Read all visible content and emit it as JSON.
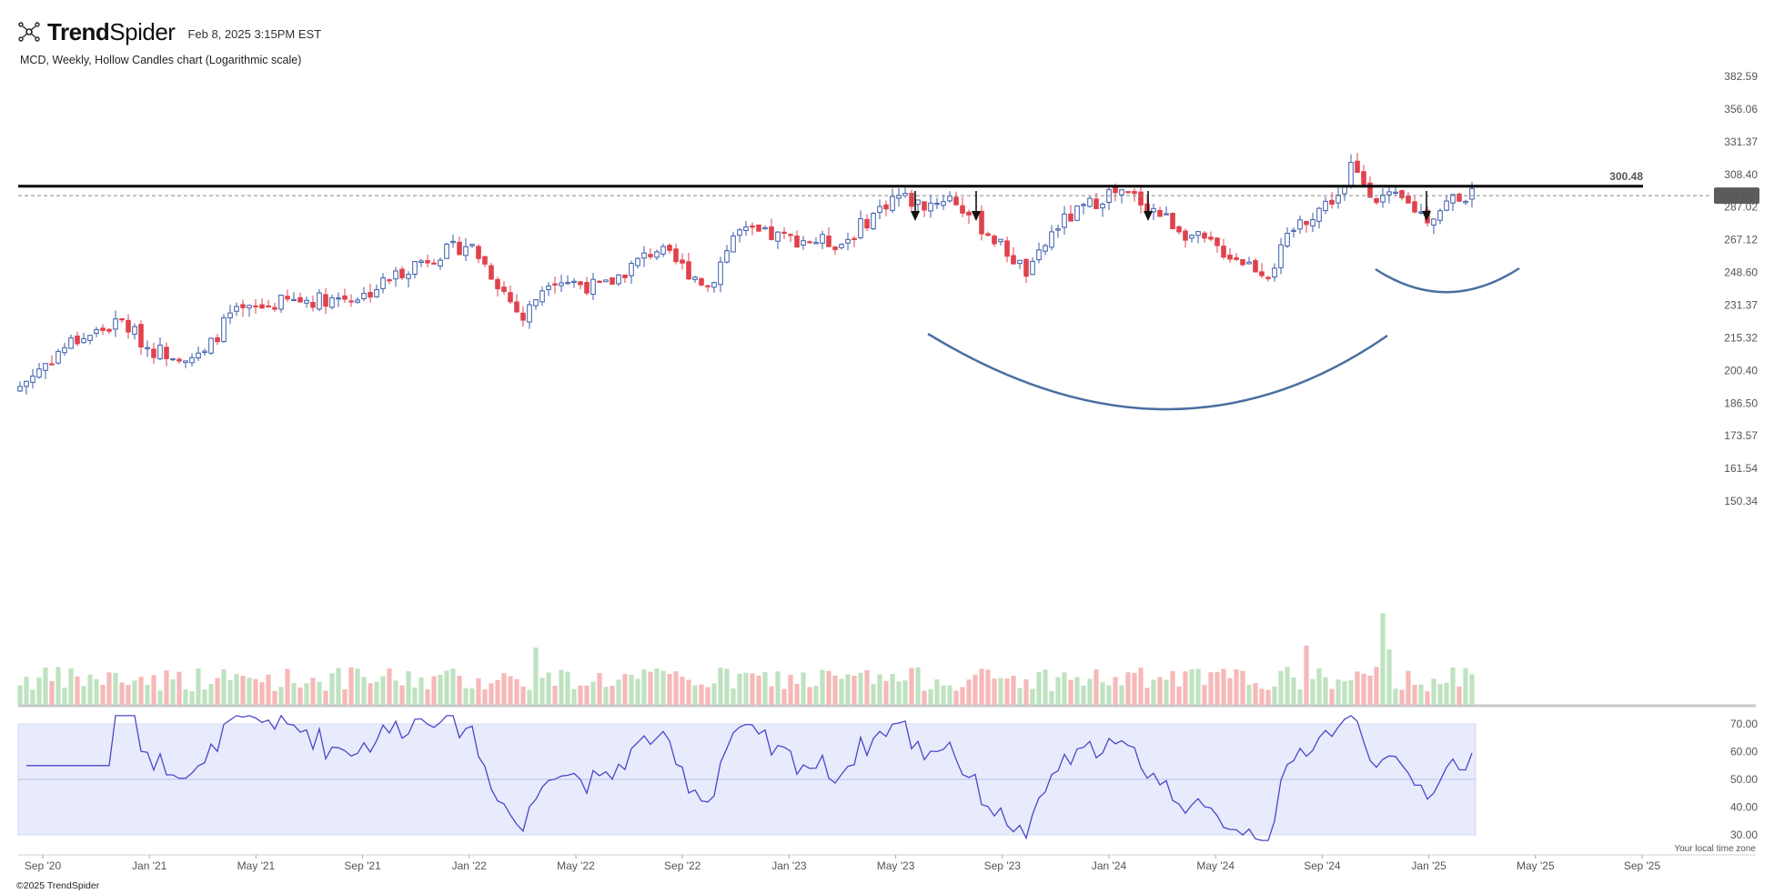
{
  "header": {
    "brand_bold": "Trend",
    "brand_light": "Spider",
    "timestamp": "Feb 8, 2025 3:15PM EST",
    "logo_icon": "trendspider-logo-icon"
  },
  "subtitle": "MCD, Weekly, Hollow Candles chart (Logarithmic scale)",
  "footer": {
    "copyright": "©2025 TrendSpider",
    "timezone": "Your local time zone"
  },
  "colors": {
    "up": "#3b5bab",
    "down": "#e0424c",
    "vol_up": "#bfe2c0",
    "vol_down": "#f6b8b8",
    "rsi_line": "#4a47c9",
    "rsi_band": "#e8ebfb",
    "curve": "#4a6fa0",
    "resistance": "#000000"
  },
  "chart_data": [
    {
      "type": "candlestick",
      "title": "MCD, Weekly, Hollow Candles chart (Logarithmic scale)",
      "scale": "log",
      "yticks": [
        "382.59",
        "356.06",
        "331.37",
        "308.40",
        "287.02",
        "267.12",
        "248.60",
        "231.37",
        "215.32",
        "200.40",
        "186.50",
        "173.57",
        "161.54",
        "150.34"
      ],
      "xticks": [
        "Sep '20",
        "Jan '21",
        "May '21",
        "Sep '21",
        "Jan '22",
        "May '22",
        "Sep '22",
        "Jan '23",
        "May '23",
        "Sep '23",
        "Jan '24",
        "May '24",
        "Sep '24",
        "Jan '25",
        "May '25",
        "Sep '25"
      ],
      "last_price": "294.30",
      "resistance_level": "300.48",
      "annotations": {
        "arrows_at": [
          "May '23",
          "Jul '23",
          "Feb '24",
          "Nov '24"
        ],
        "large_arc": "rounded bottom May '23 – Oct '24",
        "small_arc": "rounded bottom Oct '24 – Mar '25"
      },
      "close_anchors": [
        [
          "Aug '20",
          192
        ],
        [
          "Oct '20",
          213
        ],
        [
          "Dec '20",
          223
        ],
        [
          "Jan '21",
          210
        ],
        [
          "Mar '21",
          206
        ],
        [
          "Apr '21",
          226
        ],
        [
          "Jun '21",
          233
        ],
        [
          "Sep '21",
          236
        ],
        [
          "Nov '21",
          254
        ],
        [
          "Jan '22",
          265
        ],
        [
          "Mar '22",
          224
        ],
        [
          "Apr '22",
          246
        ],
        [
          "Jun '22",
          240
        ],
        [
          "Aug '22",
          262
        ],
        [
          "Oct '22",
          241
        ],
        [
          "Nov '22",
          272
        ],
        [
          "Jan '23",
          268
        ],
        [
          "Mar '23",
          265
        ],
        [
          "May '23",
          295
        ],
        [
          "Jun '23",
          288
        ],
        [
          "Jul '23",
          294
        ],
        [
          "Oct '23",
          247
        ],
        [
          "Nov '23",
          275
        ],
        [
          "Jan '24",
          296
        ],
        [
          "Feb '24",
          293
        ],
        [
          "Apr '24",
          270
        ],
        [
          "Jul '24",
          248
        ],
        [
          "Aug '24",
          275
        ],
        [
          "Oct '24",
          300
        ],
        [
          "Oct '24",
          315
        ],
        [
          "Nov '24",
          294
        ],
        [
          "Dec '24",
          291
        ],
        [
          "Jan '25",
          280
        ],
        [
          "Feb '25",
          294.3
        ]
      ]
    },
    {
      "type": "bar",
      "title": "Volume",
      "note": "weekly volume bars, color by candle direction; spikes near Sep '24 and Oct '24"
    },
    {
      "type": "line",
      "title": "RSI",
      "yticks": [
        "70.00",
        "60.00",
        "50.00",
        "40.00",
        "30.00"
      ],
      "ylim": [
        30,
        70
      ],
      "band": [
        30,
        70
      ]
    }
  ]
}
